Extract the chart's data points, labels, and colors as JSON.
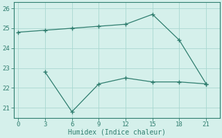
{
  "xlabel": "Humidex (Indice chaleur)",
  "x_upper": [
    0,
    3,
    6,
    9,
    12,
    15,
    18,
    21
  ],
  "y_upper": [
    24.8,
    24.9,
    25.0,
    25.1,
    25.2,
    25.7,
    24.4,
    22.2
  ],
  "x_lower": [
    3,
    6,
    9,
    12,
    15,
    18,
    21
  ],
  "y_lower": [
    22.8,
    20.8,
    22.2,
    22.5,
    22.3,
    22.3,
    22.2
  ],
  "line_color": "#2e7d6e",
  "bg_color": "#d5f0eb",
  "grid_color": "#a8d8d0",
  "ylim": [
    20.5,
    26.3
  ],
  "xlim": [
    -0.5,
    22.5
  ],
  "xticks": [
    0,
    3,
    6,
    9,
    12,
    15,
    18,
    21
  ],
  "yticks": [
    21,
    22,
    23,
    24,
    25,
    26
  ]
}
